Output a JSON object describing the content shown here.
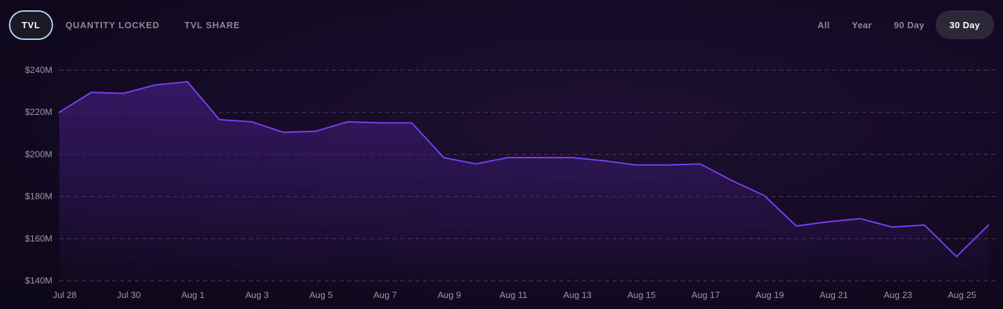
{
  "metric_tabs": [
    {
      "label": "TVL",
      "active": true
    },
    {
      "label": "QUANTITY LOCKED",
      "active": false
    },
    {
      "label": "TVL SHARE",
      "active": false
    }
  ],
  "range_tabs": [
    {
      "label": "All",
      "active": false
    },
    {
      "label": "Year",
      "active": false
    },
    {
      "label": "90 Day",
      "active": false
    },
    {
      "label": "30 Day",
      "active": true
    }
  ],
  "colors": {
    "line": "#7b3ff2",
    "area_top": "#3a1a6e",
    "grid": "#4a4260",
    "tab_active_border": "#a9d8f2"
  },
  "chart_data": {
    "type": "area",
    "x": [
      "Jul 28",
      "Jul 29",
      "Jul 30",
      "Jul 31",
      "Aug 1",
      "Aug 2",
      "Aug 3",
      "Aug 4",
      "Aug 5",
      "Aug 6",
      "Aug 7",
      "Aug 8",
      "Aug 9",
      "Aug 10",
      "Aug 11",
      "Aug 12",
      "Aug 13",
      "Aug 14",
      "Aug 15",
      "Aug 16",
      "Aug 17",
      "Aug 18",
      "Aug 19",
      "Aug 20",
      "Aug 21",
      "Aug 22",
      "Aug 23",
      "Aug 24",
      "Aug 25",
      "Aug 26"
    ],
    "series": [
      {
        "values": [
          220,
          229.5,
          229,
          233,
          234.5,
          216.5,
          215.5,
          210.5,
          211,
          215.5,
          215,
          215,
          198.5,
          195.5,
          198.5,
          198.5,
          198.5,
          197,
          195,
          195,
          195.5,
          187.5,
          180.5,
          166,
          168,
          169.5,
          165.5,
          166.5,
          151.5,
          166.5
        ]
      }
    ],
    "x_tick_labels": [
      "Jul 28",
      "Jul 30",
      "Aug 1",
      "Aug 3",
      "Aug 5",
      "Aug 7",
      "Aug 9",
      "Aug 11",
      "Aug 13",
      "Aug 15",
      "Aug 17",
      "Aug 19",
      "Aug 21",
      "Aug 23",
      "Aug 25"
    ],
    "y_ticks": [
      140,
      160,
      180,
      200,
      220,
      240
    ],
    "y_tick_labels": [
      "$140M",
      "$160M",
      "$180M",
      "$200M",
      "$220M",
      "$240M"
    ],
    "ylim": [
      140,
      240
    ],
    "grid": true,
    "legend": "none"
  }
}
